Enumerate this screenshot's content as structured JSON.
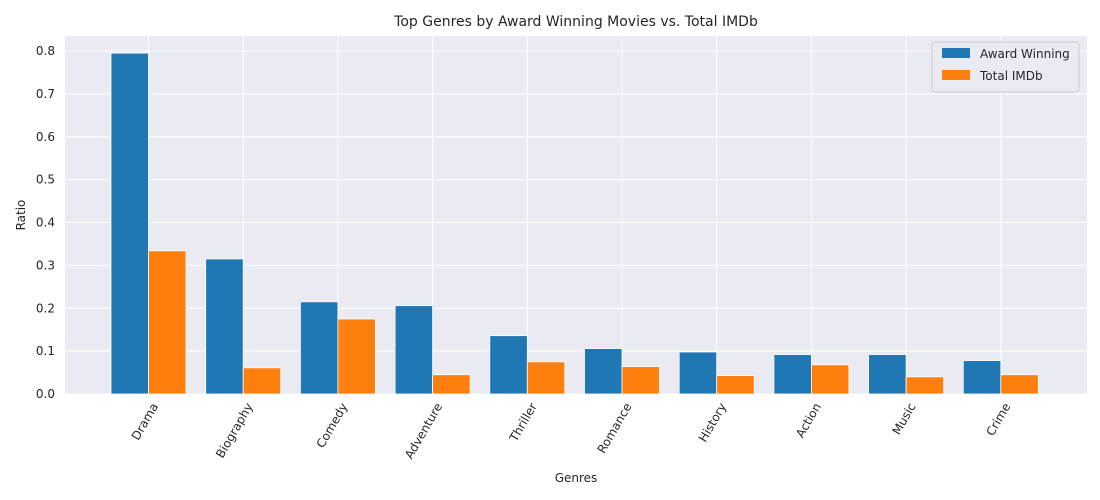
{
  "chart_data": {
    "type": "bar",
    "title": "Top Genres by Award Winning Movies vs. Total IMDb",
    "xlabel": "Genres",
    "ylabel": "Ratio",
    "categories": [
      "Drama",
      "Biography",
      "Comedy",
      "Adventure",
      "Thriller",
      "Romance",
      "History",
      "Action",
      "Music",
      "Crime"
    ],
    "series": [
      {
        "name": "Award Winning",
        "color": "#1f77b4",
        "values": [
          0.795,
          0.315,
          0.215,
          0.206,
          0.136,
          0.106,
          0.098,
          0.092,
          0.092,
          0.078
        ]
      },
      {
        "name": "Total IMDb",
        "color": "#ff7f0e",
        "values": [
          0.334,
          0.061,
          0.175,
          0.045,
          0.075,
          0.064,
          0.043,
          0.068,
          0.04,
          0.045
        ]
      }
    ],
    "ylim": [
      0,
      0.835
    ],
    "yticks": [
      "0.0",
      "0.1",
      "0.2",
      "0.3",
      "0.4",
      "0.5",
      "0.6",
      "0.7",
      "0.8"
    ],
    "grid": true,
    "legend_position": "top-right",
    "plot_background": "#eaeaf2"
  }
}
